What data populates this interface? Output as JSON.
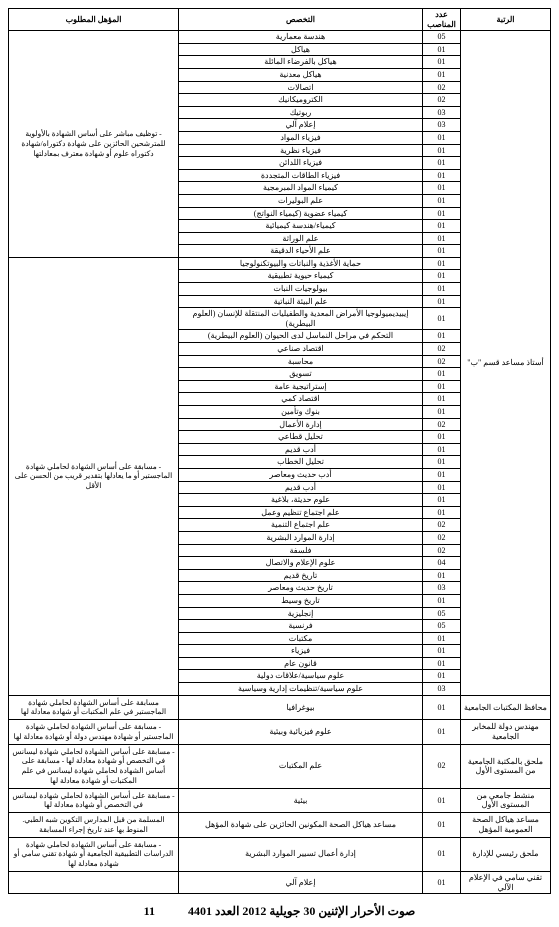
{
  "headers": {
    "rank": "الرتبة",
    "count": "عدد المناصب",
    "spec": "التخصص",
    "note": "المؤهل المطلوب"
  },
  "section1": {
    "rank": "أستاذ مساعد قسم \"ب\"",
    "note1": "- توظيف مباشر على أساس الشهادة بالأولوية للمترشحين الحائزين على شهادة دكتوراه/شهادة دكتوراه علوم أو شهادة معترف بمعادلتها",
    "note2": "- مسابقة على أساس الشهادة لحاملي شهادة الماجستير أو ما يعادلها بتقدير قريب من الحسن على الأقل",
    "rows": [
      {
        "c": "05",
        "s": "هندسة معمارية"
      },
      {
        "c": "01",
        "s": "هياكل"
      },
      {
        "c": "01",
        "s": "هياكل بالفرضاء المائلة"
      },
      {
        "c": "01",
        "s": "هياكل معدنية"
      },
      {
        "c": "02",
        "s": "اتصالات"
      },
      {
        "c": "02",
        "s": "الكتروميكانيك"
      },
      {
        "c": "03",
        "s": "ربوتيك"
      },
      {
        "c": "03",
        "s": "إعلام آلي"
      },
      {
        "c": "01",
        "s": "فيزياء المواد"
      },
      {
        "c": "01",
        "s": "فيزياء نظرية"
      },
      {
        "c": "01",
        "s": "فيزياء اللدائن"
      },
      {
        "c": "01",
        "s": "فيزياء الطاقات المتجددة"
      },
      {
        "c": "01",
        "s": "كيمياء المواد المبرمجية"
      },
      {
        "c": "01",
        "s": "علم البوليرات"
      },
      {
        "c": "01",
        "s": "كيمياء عضوية (كيمياء النواتج)"
      },
      {
        "c": "01",
        "s": "كيمياء/هندسة كيميائية"
      },
      {
        "c": "01",
        "s": "علم الوراثة"
      },
      {
        "c": "01",
        "s": "علم الأحياء الدقيقة"
      },
      {
        "c": "01",
        "s": "حماية الأغذية والنباتات والبيوتكنولوجيا"
      },
      {
        "c": "01",
        "s": "كيمياء حيوية تطبيقية"
      },
      {
        "c": "01",
        "s": "بيولوجيات النبات"
      },
      {
        "c": "01",
        "s": "علم البيئة النباتية"
      },
      {
        "c": "01",
        "s": "إيبيديميولوجيا الأمراض المعدية والطفيليات المنتقلة للإنسان (العلوم البيطرية)"
      },
      {
        "c": "01",
        "s": "التحكم في مراحل النماسل لدى الحيوان (العلوم البيطرية)"
      },
      {
        "c": "02",
        "s": "اقتصاد صناعي"
      },
      {
        "c": "02",
        "s": "محاسبة"
      },
      {
        "c": "01",
        "s": "تسويق"
      },
      {
        "c": "01",
        "s": "إستراتيجية عامة"
      },
      {
        "c": "01",
        "s": "اقتصاد كمي"
      },
      {
        "c": "01",
        "s": "بنوك وتأمين"
      },
      {
        "c": "02",
        "s": "إدارة الأعمال"
      },
      {
        "c": "01",
        "s": "تحليل قطاعي"
      },
      {
        "c": "01",
        "s": "أدب قديم"
      },
      {
        "c": "01",
        "s": "تحليل الخطاب"
      },
      {
        "c": "01",
        "s": "أدب حديث ومعاصر"
      },
      {
        "c": "01",
        "s": "أدب قديم"
      },
      {
        "c": "01",
        "s": "علوم حديثة، بلاغية"
      },
      {
        "c": "01",
        "s": "علم اجتماع تنظيم وعمل"
      },
      {
        "c": "02",
        "s": "علم اجتماع التنمية"
      },
      {
        "c": "02",
        "s": "إدارة الموارد البشرية"
      },
      {
        "c": "02",
        "s": "فلسفة"
      },
      {
        "c": "04",
        "s": "علوم الإعلام والاتصال"
      },
      {
        "c": "01",
        "s": "تاريخ قديم"
      },
      {
        "c": "03",
        "s": "تاريخ حديث ومعاصر"
      },
      {
        "c": "01",
        "s": "تاريخ وسيط"
      },
      {
        "c": "05",
        "s": "إنجليزية"
      },
      {
        "c": "05",
        "s": "فرنسية"
      },
      {
        "c": "01",
        "s": "مكتبات"
      },
      {
        "c": "01",
        "s": "فيزياء"
      },
      {
        "c": "01",
        "s": "قانون عام"
      },
      {
        "c": "01",
        "s": "علوم سياسية/علاقات دولية"
      },
      {
        "c": "03",
        "s": "علوم سياسية/تنظيمات إدارية وسياسية"
      }
    ]
  },
  "section2": [
    {
      "rank": "محافظ المكتبات الجامعية",
      "c": "01",
      "s": "بيوغرافيا",
      "note": "مسابقة على أساس الشهادة لحاملي شهادة الماجستير في علم المكتبات أو شهادة معادلة لها"
    },
    {
      "rank": "مهندس دولة للمخابر الجامعية",
      "c": "01",
      "s": "علوم فيزيائية وبيئية",
      "note": "- مسابقة على أساس الشهادة لحاملي شهادة الماجستير أو شهادة مهندس دولة أو شهادة معادلة لها"
    },
    {
      "rank": "ملحق بالمكتبة الجامعية من المستوى الأول",
      "c": "02",
      "s": "علم المكتبات",
      "note": "- مسابقة على أساس الشهادة لحاملي شهادة ليسانس في التخصص أو شهادة معادلة لها\n- مسابقة على أساس الشهادة لحاملي شهادة ليسانس في علم المكتبات أو شهادة معادلة لها"
    }
  ],
  "section3": [
    {
      "rank": "منشط جامعي من المستوى الأول",
      "c": "01",
      "s": "بيئية",
      "note": "- مسابقة على أساس الشهادة لحاملي شهادة ليسانس في التخصص أو شهادة معادلة لها"
    },
    {
      "rank": "مساعد هياكل الصحة العمومية المؤهل",
      "c": "01",
      "s": "مساعد هياكل الصحة المكونين الحائزين على شهادة المؤهل",
      "note": "\nالمسلمة من قبل المدارس التكوين شبه الطبي. المنوط بها عند تاريخ إجراء المسابقة"
    }
  ],
  "section4": [
    {
      "rank": "ملحق رئيسي للإدارة",
      "c": "01",
      "s": "إدارة أعمال تسيير الموارد البشرية",
      "note": "- مسابقة على أساس الشهادة لحاملي شهادة الدراسات التطبيقية الجامعية أو شهادة تقني سامي أو شهادة معادلة لها"
    },
    {
      "rank": "تقني سامي في الإعلام الآلي",
      "c": "01",
      "s": "إعلام آلي",
      "note": ""
    }
  ],
  "footer": {
    "date": "صوت الأحرار الإثنين 30 جويلية 2012 العدد 4401",
    "page": "11"
  }
}
